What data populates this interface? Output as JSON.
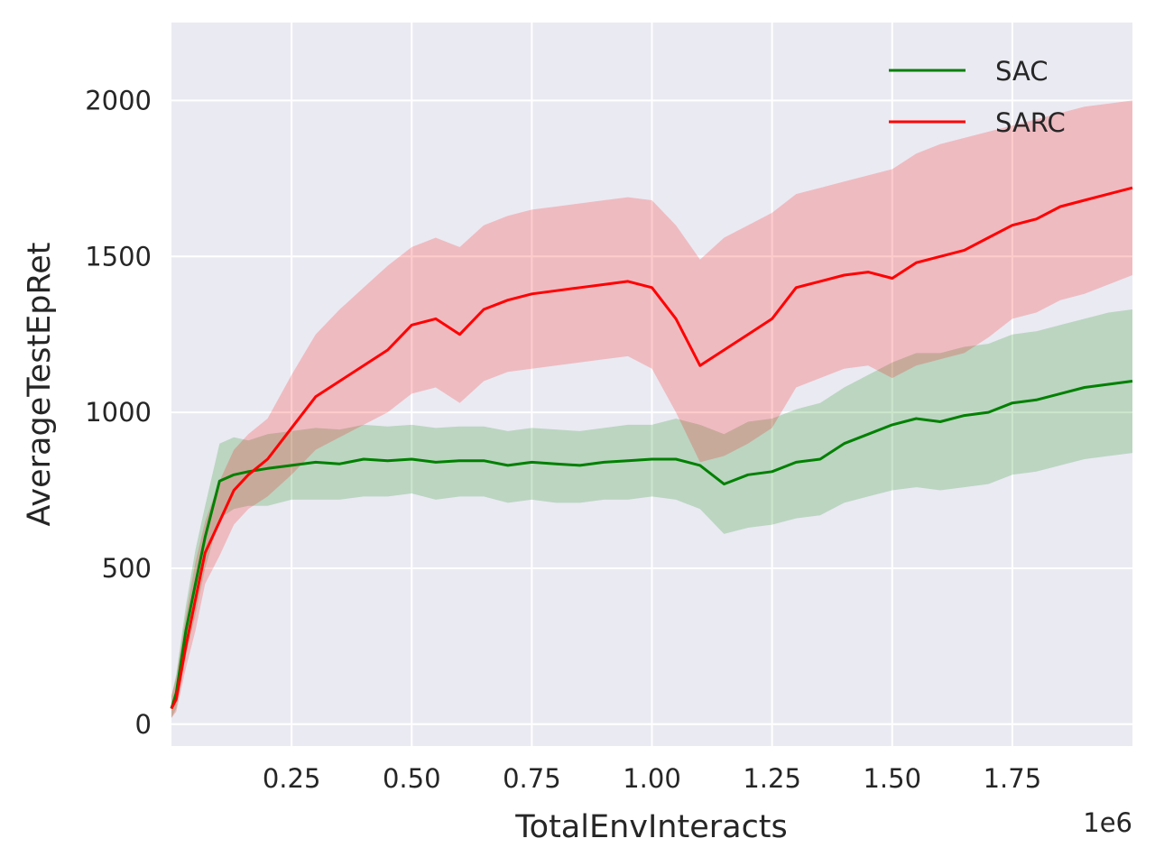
{
  "chart_data": {
    "type": "line",
    "xlabel": "TotalEnvInteracts",
    "ylabel": "AverageTestEpRet",
    "x_offset_label": "1e6",
    "xlim": [
      0,
      2000000
    ],
    "ylim": [
      -70,
      2250
    ],
    "xticks": [
      250000,
      500000,
      750000,
      1000000,
      1250000,
      1500000,
      1750000
    ],
    "xtick_labels": [
      "0.25",
      "0.50",
      "0.75",
      "1.00",
      "1.25",
      "1.50",
      "1.75"
    ],
    "yticks": [
      0,
      500,
      1000,
      1500,
      2000
    ],
    "ytick_labels": [
      "0",
      "500",
      "1000",
      "1500",
      "2000"
    ],
    "grid": true,
    "legend_position": "top-right",
    "series": [
      {
        "name": "SAC",
        "color": "#008000",
        "x": [
          0,
          10000,
          30000,
          50000,
          70000,
          100000,
          130000,
          160000,
          200000,
          250000,
          300000,
          350000,
          400000,
          450000,
          500000,
          550000,
          600000,
          650000,
          700000,
          750000,
          800000,
          850000,
          900000,
          950000,
          1000000,
          1050000,
          1100000,
          1150000,
          1200000,
          1250000,
          1300000,
          1350000,
          1400000,
          1450000,
          1500000,
          1550000,
          1600000,
          1650000,
          1700000,
          1750000,
          1800000,
          1850000,
          1900000,
          1950000,
          2000000
        ],
        "y": [
          50,
          100,
          300,
          450,
          600,
          780,
          800,
          810,
          820,
          830,
          840,
          835,
          850,
          845,
          850,
          840,
          845,
          845,
          830,
          840,
          835,
          830,
          840,
          845,
          850,
          850,
          830,
          770,
          800,
          810,
          840,
          850,
          900,
          930,
          960,
          980,
          970,
          990,
          1000,
          1030,
          1040,
          1060,
          1080,
          1090,
          1100
        ],
        "upper": [
          90,
          160,
          380,
          560,
          700,
          900,
          920,
          910,
          930,
          940,
          950,
          945,
          960,
          955,
          960,
          950,
          955,
          955,
          940,
          950,
          945,
          940,
          950,
          960,
          960,
          980,
          960,
          930,
          970,
          980,
          1010,
          1030,
          1080,
          1120,
          1160,
          1190,
          1190,
          1210,
          1220,
          1250,
          1260,
          1280,
          1300,
          1320,
          1330
        ],
        "lower": [
          20,
          50,
          220,
          350,
          500,
          660,
          690,
          700,
          700,
          720,
          720,
          720,
          730,
          730,
          740,
          720,
          730,
          730,
          710,
          720,
          710,
          710,
          720,
          720,
          730,
          720,
          690,
          610,
          630,
          640,
          660,
          670,
          710,
          730,
          750,
          760,
          750,
          760,
          770,
          800,
          810,
          830,
          850,
          860,
          870
        ]
      },
      {
        "name": "SARC",
        "color": "#ff0000",
        "x": [
          0,
          10000,
          30000,
          50000,
          70000,
          100000,
          130000,
          160000,
          200000,
          250000,
          300000,
          350000,
          400000,
          450000,
          500000,
          550000,
          600000,
          650000,
          700000,
          750000,
          800000,
          850000,
          900000,
          950000,
          1000000,
          1050000,
          1100000,
          1150000,
          1200000,
          1250000,
          1300000,
          1350000,
          1400000,
          1450000,
          1500000,
          1550000,
          1600000,
          1650000,
          1700000,
          1750000,
          1800000,
          1850000,
          1900000,
          1950000,
          2000000
        ],
        "y": [
          50,
          80,
          250,
          400,
          550,
          650,
          750,
          800,
          850,
          950,
          1050,
          1100,
          1150,
          1200,
          1280,
          1300,
          1250,
          1330,
          1360,
          1380,
          1390,
          1400,
          1410,
          1420,
          1400,
          1300,
          1150,
          1200,
          1250,
          1300,
          1400,
          1420,
          1440,
          1450,
          1430,
          1480,
          1500,
          1520,
          1560,
          1600,
          1620,
          1660,
          1680,
          1700,
          1720
        ],
        "upper": [
          90,
          150,
          350,
          520,
          650,
          780,
          880,
          930,
          980,
          1120,
          1250,
          1330,
          1400,
          1470,
          1530,
          1560,
          1530,
          1600,
          1630,
          1650,
          1660,
          1670,
          1680,
          1690,
          1680,
          1600,
          1490,
          1560,
          1600,
          1640,
          1700,
          1720,
          1740,
          1760,
          1780,
          1830,
          1860,
          1880,
          1900,
          1920,
          1940,
          1960,
          1980,
          1990,
          2000
        ],
        "lower": [
          20,
          40,
          180,
          300,
          450,
          540,
          640,
          690,
          730,
          800,
          880,
          920,
          960,
          1000,
          1060,
          1080,
          1030,
          1100,
          1130,
          1140,
          1150,
          1160,
          1170,
          1180,
          1140,
          1000,
          840,
          860,
          900,
          950,
          1080,
          1110,
          1140,
          1150,
          1110,
          1150,
          1170,
          1190,
          1240,
          1300,
          1320,
          1360,
          1380,
          1410,
          1440
        ]
      }
    ]
  }
}
